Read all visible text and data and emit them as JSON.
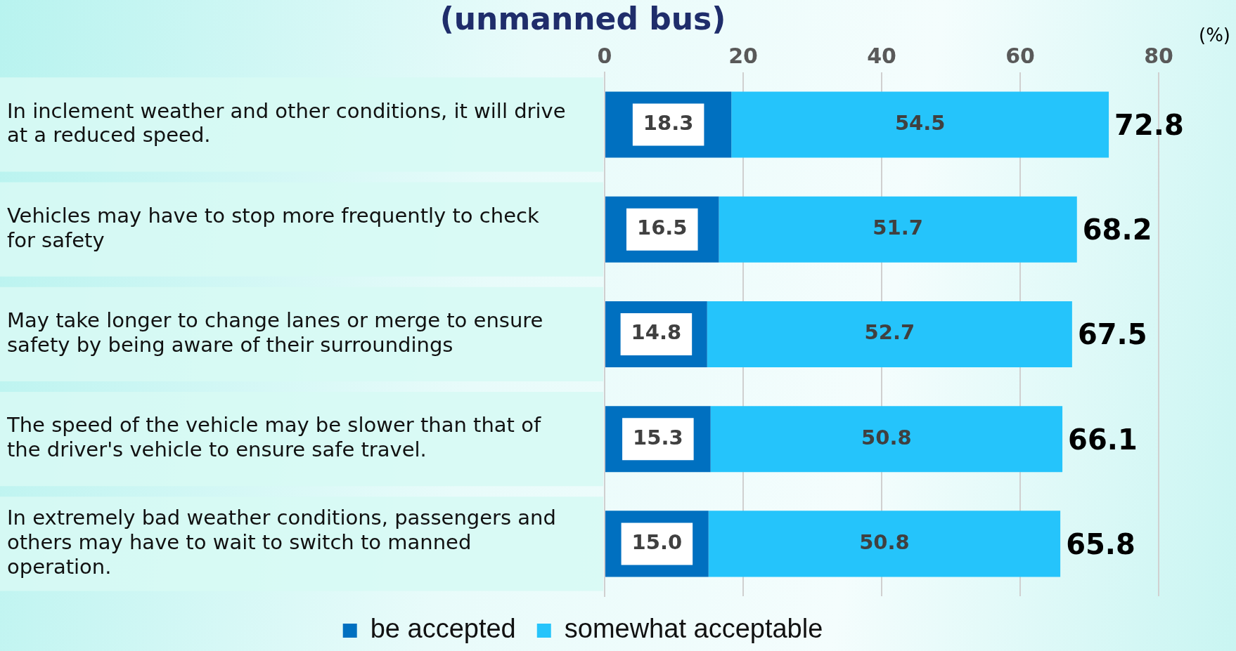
{
  "chart_data": {
    "type": "bar",
    "orientation": "horizontal",
    "stacked": true,
    "title": "(unmanned bus)",
    "xlabel": "(%)",
    "categories": [
      "In inclement weather and other conditions, it will drive at a reduced speed.",
      "Vehicles may have to stop more frequently to check for safety",
      "May take longer to change lanes or merge to ensure safety by being aware of their surroundings",
      "The speed of the vehicle may be slower than that of the driver's vehicle to ensure safe travel.",
      "In extremely bad weather conditions, passengers and others may have to wait to switch to manned operation."
    ],
    "series": [
      {
        "name": "be accepted",
        "color": "#0070c0",
        "values": [
          18.3,
          16.5,
          14.8,
          15.3,
          15.0
        ],
        "value_labels": [
          "18.3",
          "16.5",
          "14.8",
          "15.3",
          "15.0"
        ]
      },
      {
        "name": "somewhat acceptable",
        "color": "#25c4fb",
        "values": [
          54.5,
          51.7,
          52.7,
          50.8,
          50.8
        ],
        "value_labels": [
          "54.5",
          "51.7",
          "52.7",
          "50.8",
          "50.8"
        ]
      }
    ],
    "totals": [
      "72.8",
      "68.2",
      "67.5",
      "66.1",
      "65.8"
    ],
    "xlim": [
      0,
      80
    ],
    "xticks": [
      0,
      20,
      40,
      60,
      80
    ],
    "grid": "x",
    "legend": "bottom",
    "data_labels": true
  }
}
